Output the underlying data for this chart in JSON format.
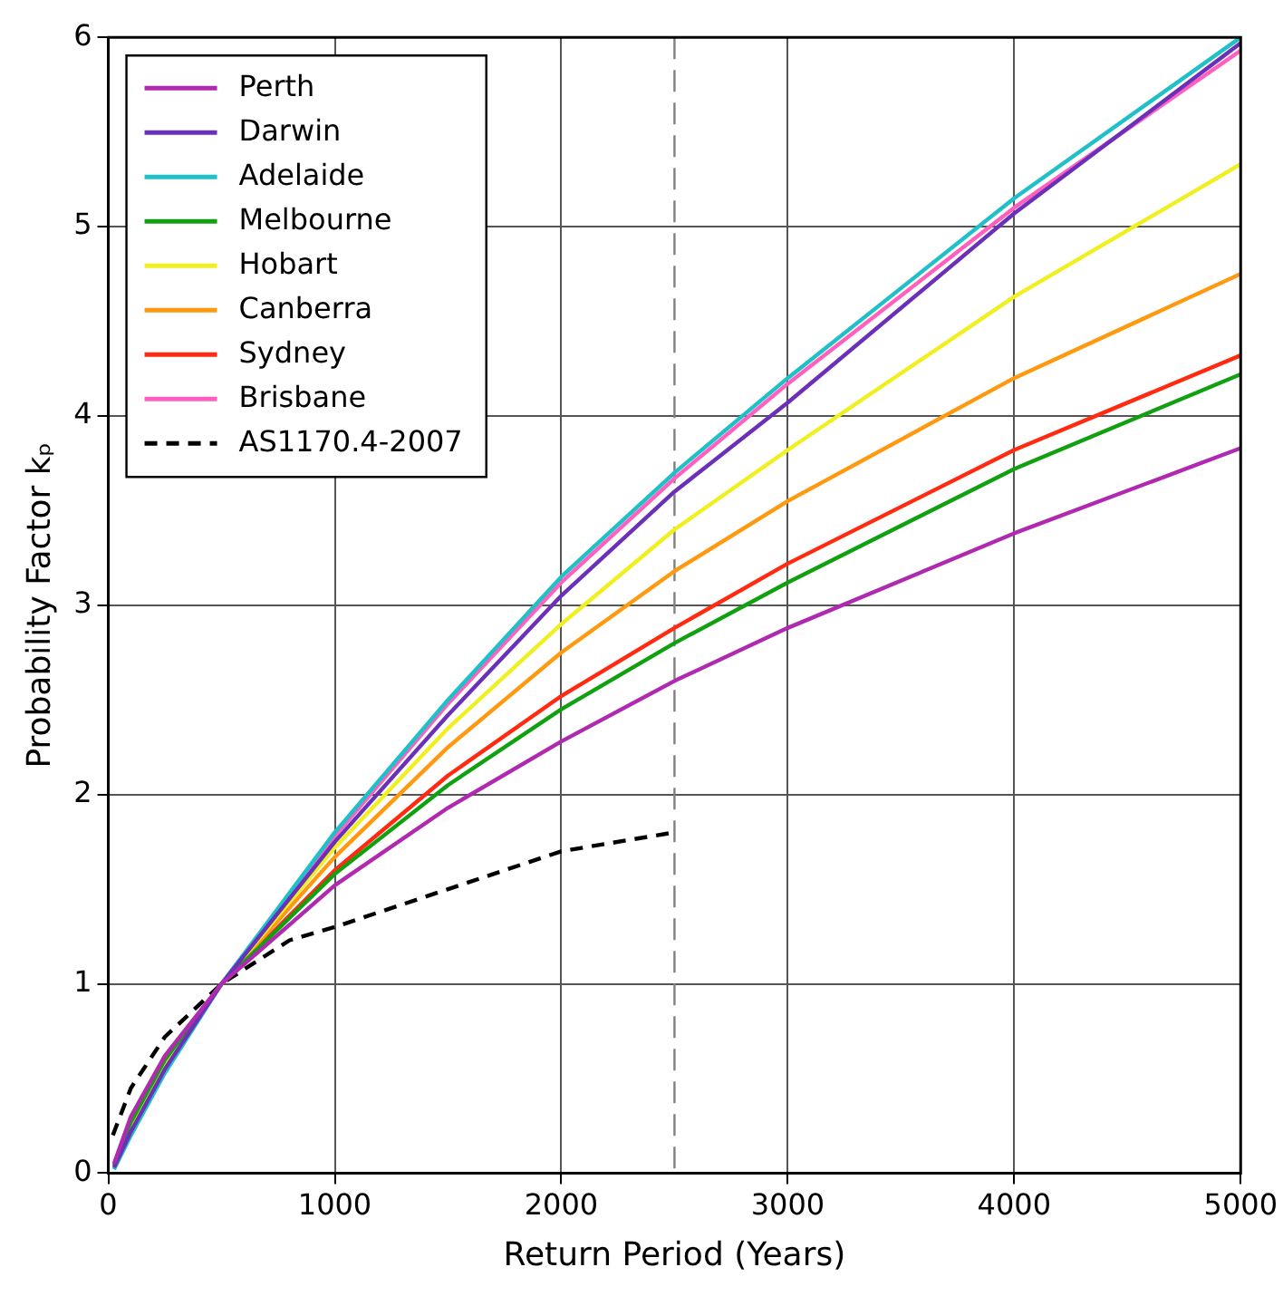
{
  "chart_data": {
    "type": "line",
    "xlabel": "Return Period (Years)",
    "ylabel": "Probability Factor kₚ",
    "x": [
      25,
      100,
      250,
      500,
      1000,
      1500,
      2000,
      2500,
      3000,
      4000,
      5000
    ],
    "series": [
      {
        "name": "Perth",
        "color": "#b02ab0",
        "values": [
          0.05,
          0.3,
          0.62,
          1.0,
          1.52,
          1.93,
          2.28,
          2.6,
          2.88,
          3.38,
          3.83
        ]
      },
      {
        "name": "Darwin",
        "color": "#6a30b8",
        "values": [
          0.03,
          0.22,
          0.55,
          1.0,
          1.75,
          2.42,
          3.05,
          3.6,
          4.07,
          5.07,
          5.97
        ]
      },
      {
        "name": "Adelaide",
        "color": "#20c0c8",
        "values": [
          0.02,
          0.2,
          0.53,
          1.0,
          1.8,
          2.5,
          3.15,
          3.7,
          4.2,
          5.15,
          6.0
        ]
      },
      {
        "name": "Melbourne",
        "color": "#10a010",
        "values": [
          0.04,
          0.27,
          0.6,
          1.0,
          1.58,
          2.05,
          2.45,
          2.8,
          3.12,
          3.72,
          4.22
        ]
      },
      {
        "name": "Hobart",
        "color": "#f0f020",
        "values": [
          0.03,
          0.23,
          0.56,
          1.0,
          1.72,
          2.35,
          2.9,
          3.4,
          3.82,
          4.63,
          5.33
        ]
      },
      {
        "name": "Canberra",
        "color": "#ff9a10",
        "values": [
          null,
          null,
          0.57,
          1.0,
          1.67,
          2.25,
          2.75,
          3.18,
          3.55,
          4.2,
          4.75
        ]
      },
      {
        "name": "Sydney",
        "color": "#ff2a10",
        "values": [
          null,
          null,
          0.59,
          1.0,
          1.6,
          2.1,
          2.52,
          2.88,
          3.22,
          3.82,
          4.32
        ]
      },
      {
        "name": "Brisbane",
        "color": "#ff60c0",
        "values": [
          null,
          null,
          null,
          1.0,
          1.78,
          2.48,
          3.12,
          3.67,
          4.17,
          5.1,
          5.93
        ]
      },
      {
        "name": "AS1170.4-2007",
        "color": "#000000",
        "line_style": "dashed",
        "x": [
          20,
          100,
          250,
          500,
          800,
          1000,
          1500,
          2000,
          2500
        ],
        "values": [
          0.2,
          0.45,
          0.72,
          1.0,
          1.23,
          1.3,
          1.5,
          1.7,
          1.8
        ]
      }
    ],
    "xlim": [
      0,
      5000
    ],
    "xticks": [
      0,
      1000,
      2000,
      3000,
      4000,
      5000
    ],
    "ylim": [
      0,
      6
    ],
    "yticks": [
      0,
      1,
      2,
      3,
      4,
      5,
      6
    ],
    "ref_lines": [
      {
        "axis": "x",
        "value": 2500,
        "color": "#808080",
        "line_style": "dashed"
      }
    ],
    "grid": true,
    "legend": "top left",
    "marker": "none",
    "line_style": "solid"
  }
}
